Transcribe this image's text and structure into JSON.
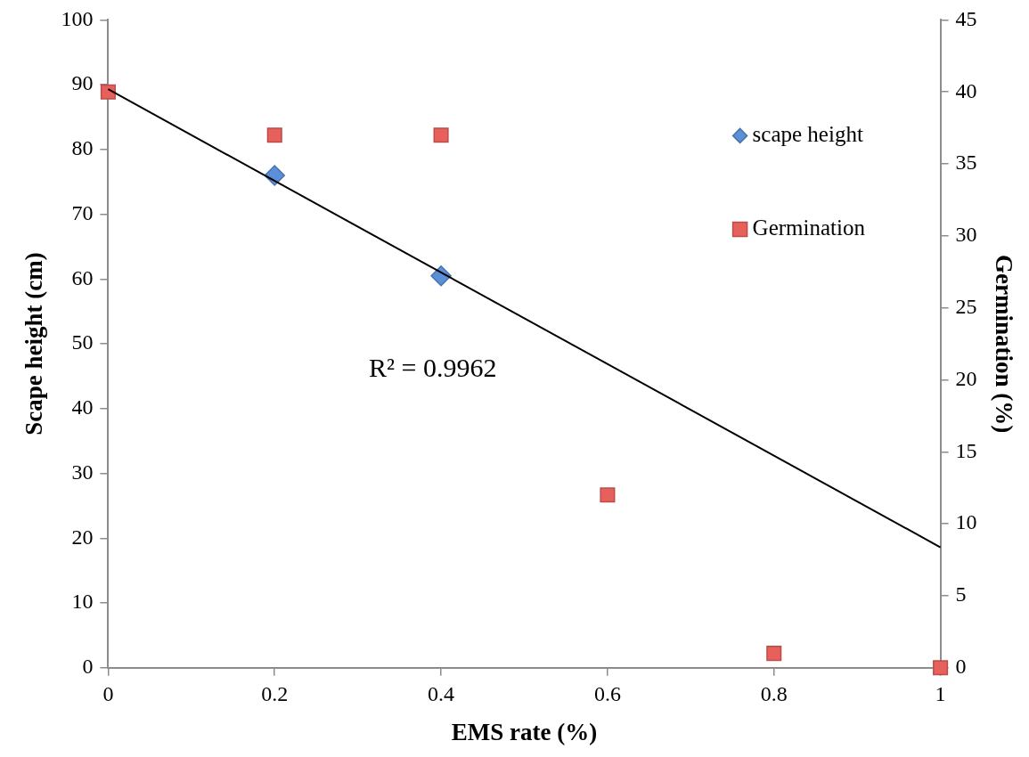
{
  "chart_data": {
    "type": "scatter",
    "xlabel": "EMS rate (%)",
    "ylabel": "Scape height (cm)",
    "y2label": "Germination (%)",
    "x": [
      0,
      0.2,
      0.4,
      0.6,
      0.8,
      1
    ],
    "xlim": [
      0,
      1
    ],
    "xticks": [
      0,
      0.2,
      0.4,
      0.6,
      0.8,
      1
    ],
    "ylim": [
      0,
      100
    ],
    "yticks": [
      0,
      10,
      20,
      30,
      40,
      50,
      60,
      70,
      80,
      90,
      100
    ],
    "y2lim": [
      0,
      45
    ],
    "y2ticks": [
      0,
      5,
      10,
      15,
      20,
      25,
      30,
      35,
      40,
      45
    ],
    "series": [
      {
        "name": "scape height",
        "type": "scatter",
        "marker": "diamond",
        "color": "#5b8fd8",
        "values": [
          null,
          76,
          60.5,
          null,
          null,
          null
        ]
      },
      {
        "name": "Germination",
        "type": "scatter",
        "marker": "square",
        "color": "#e8605c",
        "axis": "y2",
        "values": [
          40,
          37,
          37,
          12,
          1,
          0
        ]
      },
      {
        "type": "line",
        "marker": "none",
        "color": "#000000",
        "x": [
          0,
          1
        ],
        "values": [
          89.3,
          18.6
        ]
      }
    ],
    "annotations": [
      "R² = 0.9962"
    ],
    "grid": false,
    "legend": "top right"
  }
}
